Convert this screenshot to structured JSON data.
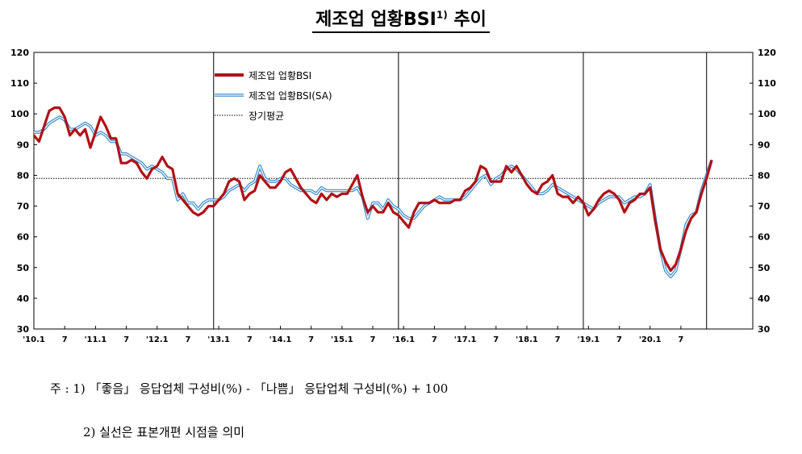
{
  "title": {
    "text": "제조업 업황BSI",
    "superscript": "1)",
    "suffix": " 추이"
  },
  "notes": {
    "line1": "주 : 1) 「좋음」 응답업체 구성비(%) - 「나쁨」 응답업체 구성비(%) + 100",
    "line2": "2) 실선은 표본개편 시점을 의미"
  },
  "chart_data": {
    "type": "line",
    "ylim": [
      30,
      120
    ],
    "yticks": [
      30,
      40,
      50,
      60,
      70,
      80,
      90,
      100,
      110,
      120
    ],
    "xlim": [
      "2010-01",
      "2021-09"
    ],
    "x_tick_labels": [
      {
        "date": "2010-01",
        "label": "'10.1"
      },
      {
        "date": "2010-07",
        "label": "7"
      },
      {
        "date": "2011-01",
        "label": "'11.1"
      },
      {
        "date": "2011-07",
        "label": "7"
      },
      {
        "date": "2012-01",
        "label": "'12.1"
      },
      {
        "date": "2012-07",
        "label": "7"
      },
      {
        "date": "2013-01",
        "label": "'13.1"
      },
      {
        "date": "2013-07",
        "label": "7"
      },
      {
        "date": "2014-01",
        "label": "'14.1"
      },
      {
        "date": "2014-07",
        "label": "7"
      },
      {
        "date": "2015-01",
        "label": "'15.1"
      },
      {
        "date": "2015-07",
        "label": "7"
      },
      {
        "date": "2016-01",
        "label": "'16.1"
      },
      {
        "date": "2016-07",
        "label": "7"
      },
      {
        "date": "2017-01",
        "label": "'17.1"
      },
      {
        "date": "2017-07",
        "label": "7"
      },
      {
        "date": "2018-01",
        "label": "'18.1"
      },
      {
        "date": "2018-07",
        "label": "7"
      },
      {
        "date": "2019-01",
        "label": "'19.1"
      },
      {
        "date": "2019-07",
        "label": "7"
      },
      {
        "date": "2020-01",
        "label": "'20.1"
      },
      {
        "date": "2020-07",
        "label": "7"
      }
    ],
    "sample_revision_lines": [
      "2012-12",
      "2015-12",
      "2018-12",
      "2020-12"
    ],
    "long_term_average": 79,
    "legend_position": "top-left",
    "series": [
      {
        "name": "제조업 업황BSI",
        "color": "#b01116",
        "style": "solid",
        "points": [
          [
            "2010-01",
            93
          ],
          [
            "2010-02",
            91
          ],
          [
            "2010-03",
            96
          ],
          [
            "2010-04",
            101
          ],
          [
            "2010-05",
            102
          ],
          [
            "2010-06",
            102
          ],
          [
            "2010-07",
            99
          ],
          [
            "2010-08",
            93
          ],
          [
            "2010-09",
            95
          ],
          [
            "2010-10",
            93
          ],
          [
            "2010-11",
            95
          ],
          [
            "2010-12",
            89
          ],
          [
            "2011-01",
            94
          ],
          [
            "2011-02",
            99
          ],
          [
            "2011-03",
            96
          ],
          [
            "2011-04",
            92
          ],
          [
            "2011-05",
            92
          ],
          [
            "2011-06",
            84
          ],
          [
            "2011-07",
            84
          ],
          [
            "2011-08",
            85
          ],
          [
            "2011-09",
            84
          ],
          [
            "2011-10",
            81
          ],
          [
            "2011-11",
            79
          ],
          [
            "2011-12",
            82
          ],
          [
            "2012-01",
            83
          ],
          [
            "2012-02",
            86
          ],
          [
            "2012-03",
            83
          ],
          [
            "2012-04",
            82
          ],
          [
            "2012-05",
            74
          ],
          [
            "2012-06",
            72
          ],
          [
            "2012-07",
            70
          ],
          [
            "2012-08",
            68
          ],
          [
            "2012-09",
            67
          ],
          [
            "2012-10",
            68
          ],
          [
            "2012-11",
            70
          ],
          [
            "2012-12",
            70
          ],
          [
            "2013-01",
            72
          ],
          [
            "2013-02",
            74
          ],
          [
            "2013-03",
            78
          ],
          [
            "2013-04",
            79
          ],
          [
            "2013-05",
            78
          ],
          [
            "2013-06",
            72
          ],
          [
            "2013-07",
            74
          ],
          [
            "2013-08",
            75
          ],
          [
            "2013-09",
            80
          ],
          [
            "2013-10",
            78
          ],
          [
            "2013-11",
            76
          ],
          [
            "2013-12",
            76
          ],
          [
            "2014-01",
            78
          ],
          [
            "2014-02",
            81
          ],
          [
            "2014-03",
            82
          ],
          [
            "2014-04",
            79
          ],
          [
            "2014-05",
            76
          ],
          [
            "2014-06",
            74
          ],
          [
            "2014-07",
            72
          ],
          [
            "2014-08",
            71
          ],
          [
            "2014-09",
            74
          ],
          [
            "2014-10",
            72
          ],
          [
            "2014-11",
            74
          ],
          [
            "2014-12",
            73
          ],
          [
            "2015-01",
            74
          ],
          [
            "2015-02",
            74
          ],
          [
            "2015-03",
            77
          ],
          [
            "2015-04",
            80
          ],
          [
            "2015-05",
            73
          ],
          [
            "2015-06",
            68
          ],
          [
            "2015-07",
            70
          ],
          [
            "2015-08",
            68
          ],
          [
            "2015-09",
            68
          ],
          [
            "2015-10",
            71
          ],
          [
            "2015-11",
            68
          ],
          [
            "2015-12",
            67
          ],
          [
            "2016-01",
            65
          ],
          [
            "2016-02",
            63
          ],
          [
            "2016-03",
            68
          ],
          [
            "2016-04",
            71
          ],
          [
            "2016-05",
            71
          ],
          [
            "2016-06",
            71
          ],
          [
            "2016-07",
            72
          ],
          [
            "2016-08",
            71
          ],
          [
            "2016-09",
            71
          ],
          [
            "2016-10",
            71
          ],
          [
            "2016-11",
            72
          ],
          [
            "2016-12",
            72
          ],
          [
            "2017-01",
            75
          ],
          [
            "2017-02",
            76
          ],
          [
            "2017-03",
            78
          ],
          [
            "2017-04",
            83
          ],
          [
            "2017-05",
            82
          ],
          [
            "2017-06",
            78
          ],
          [
            "2017-07",
            78
          ],
          [
            "2017-08",
            78
          ],
          [
            "2017-09",
            83
          ],
          [
            "2017-10",
            81
          ],
          [
            "2017-11",
            83
          ],
          [
            "2017-12",
            80
          ],
          [
            "2018-01",
            77
          ],
          [
            "2018-02",
            75
          ],
          [
            "2018-03",
            74
          ],
          [
            "2018-04",
            77
          ],
          [
            "2018-05",
            78
          ],
          [
            "2018-06",
            80
          ],
          [
            "2018-07",
            74
          ],
          [
            "2018-08",
            73
          ],
          [
            "2018-09",
            73
          ],
          [
            "2018-10",
            71
          ],
          [
            "2018-11",
            73
          ],
          [
            "2018-12",
            71
          ],
          [
            "2019-01",
            67
          ],
          [
            "2019-02",
            69
          ],
          [
            "2019-03",
            72
          ],
          [
            "2019-04",
            74
          ],
          [
            "2019-05",
            75
          ],
          [
            "2019-06",
            74
          ],
          [
            "2019-07",
            72
          ],
          [
            "2019-08",
            68
          ],
          [
            "2019-09",
            71
          ],
          [
            "2019-10",
            72
          ],
          [
            "2019-11",
            74
          ],
          [
            "2019-12",
            74
          ],
          [
            "2020-01",
            76
          ],
          [
            "2020-02",
            65
          ],
          [
            "2020-03",
            56
          ],
          [
            "2020-04",
            52
          ],
          [
            "2020-05",
            49
          ],
          [
            "2020-06",
            51
          ],
          [
            "2020-07",
            56
          ],
          [
            "2020-08",
            62
          ],
          [
            "2020-09",
            66
          ],
          [
            "2020-10",
            68
          ],
          [
            "2020-11",
            74
          ],
          [
            "2020-12",
            79
          ],
          [
            "2021-01",
            85
          ]
        ]
      },
      {
        "name": "제조업 업황BSI(SA)",
        "color": "#2f86c9",
        "style": "double",
        "points": [
          [
            "2010-01",
            94
          ],
          [
            "2010-02",
            94
          ],
          [
            "2010-03",
            95
          ],
          [
            "2010-04",
            97
          ],
          [
            "2010-05",
            98
          ],
          [
            "2010-06",
            99
          ],
          [
            "2010-07",
            98
          ],
          [
            "2010-08",
            95
          ],
          [
            "2010-09",
            95
          ],
          [
            "2010-10",
            96
          ],
          [
            "2010-11",
            97
          ],
          [
            "2010-12",
            96
          ],
          [
            "2011-01",
            93
          ],
          [
            "2011-02",
            94
          ],
          [
            "2011-03",
            93
          ],
          [
            "2011-04",
            91
          ],
          [
            "2011-05",
            91
          ],
          [
            "2011-06",
            87
          ],
          [
            "2011-07",
            87
          ],
          [
            "2011-08",
            86
          ],
          [
            "2011-09",
            85
          ],
          [
            "2011-10",
            84
          ],
          [
            "2011-11",
            82
          ],
          [
            "2011-12",
            83
          ],
          [
            "2012-01",
            82
          ],
          [
            "2012-02",
            81
          ],
          [
            "2012-03",
            79
          ],
          [
            "2012-04",
            79
          ],
          [
            "2012-05",
            72
          ],
          [
            "2012-06",
            74
          ],
          [
            "2012-07",
            71
          ],
          [
            "2012-08",
            71
          ],
          [
            "2012-09",
            69
          ],
          [
            "2012-10",
            71
          ],
          [
            "2012-11",
            72
          ],
          [
            "2012-12",
            72
          ],
          [
            "2013-01",
            72
          ],
          [
            "2013-02",
            73
          ],
          [
            "2013-03",
            75
          ],
          [
            "2013-04",
            76
          ],
          [
            "2013-05",
            77
          ],
          [
            "2013-06",
            75
          ],
          [
            "2013-07",
            77
          ],
          [
            "2013-08",
            78
          ],
          [
            "2013-09",
            83
          ],
          [
            "2013-10",
            79
          ],
          [
            "2013-11",
            78
          ],
          [
            "2013-12",
            78
          ],
          [
            "2014-01",
            79
          ],
          [
            "2014-02",
            79
          ],
          [
            "2014-03",
            77
          ],
          [
            "2014-04",
            76
          ],
          [
            "2014-05",
            75
          ],
          [
            "2014-06",
            75
          ],
          [
            "2014-07",
            75
          ],
          [
            "2014-08",
            74
          ],
          [
            "2014-09",
            76
          ],
          [
            "2014-10",
            75
          ],
          [
            "2014-11",
            75
          ],
          [
            "2014-12",
            75
          ],
          [
            "2015-01",
            75
          ],
          [
            "2015-02",
            75
          ],
          [
            "2015-03",
            75
          ],
          [
            "2015-04",
            76
          ],
          [
            "2015-05",
            73
          ],
          [
            "2015-06",
            66
          ],
          [
            "2015-07",
            71
          ],
          [
            "2015-08",
            71
          ],
          [
            "2015-09",
            69
          ],
          [
            "2015-10",
            72
          ],
          [
            "2015-11",
            70
          ],
          [
            "2015-12",
            69
          ],
          [
            "2016-01",
            67
          ],
          [
            "2016-02",
            66
          ],
          [
            "2016-03",
            66
          ],
          [
            "2016-04",
            68
          ],
          [
            "2016-05",
            70
          ],
          [
            "2016-06",
            71
          ],
          [
            "2016-07",
            72
          ],
          [
            "2016-08",
            73
          ],
          [
            "2016-09",
            72
          ],
          [
            "2016-10",
            72
          ],
          [
            "2016-11",
            72
          ],
          [
            "2016-12",
            72
          ],
          [
            "2017-01",
            73
          ],
          [
            "2017-02",
            75
          ],
          [
            "2017-03",
            77
          ],
          [
            "2017-04",
            79
          ],
          [
            "2017-05",
            80
          ],
          [
            "2017-06",
            77
          ],
          [
            "2017-07",
            79
          ],
          [
            "2017-08",
            80
          ],
          [
            "2017-09",
            82
          ],
          [
            "2017-10",
            83
          ],
          [
            "2017-11",
            82
          ],
          [
            "2017-12",
            80
          ],
          [
            "2018-01",
            78
          ],
          [
            "2018-02",
            76
          ],
          [
            "2018-03",
            74
          ],
          [
            "2018-04",
            74
          ],
          [
            "2018-05",
            75
          ],
          [
            "2018-06",
            77
          ],
          [
            "2018-07",
            76
          ],
          [
            "2018-08",
            75
          ],
          [
            "2018-09",
            74
          ],
          [
            "2018-10",
            73
          ],
          [
            "2018-11",
            72
          ],
          [
            "2018-12",
            71
          ],
          [
            "2019-01",
            70
          ],
          [
            "2019-02",
            69
          ],
          [
            "2019-03",
            71
          ],
          [
            "2019-04",
            72
          ],
          [
            "2019-05",
            73
          ],
          [
            "2019-06",
            73
          ],
          [
            "2019-07",
            73
          ],
          [
            "2019-08",
            71
          ],
          [
            "2019-09",
            72
          ],
          [
            "2019-10",
            73
          ],
          [
            "2019-11",
            73
          ],
          [
            "2019-12",
            74
          ],
          [
            "2020-01",
            77
          ],
          [
            "2020-02",
            66
          ],
          [
            "2020-03",
            56
          ],
          [
            "2020-04",
            49
          ],
          [
            "2020-05",
            47
          ],
          [
            "2020-06",
            49
          ],
          [
            "2020-07",
            56
          ],
          [
            "2020-08",
            64
          ],
          [
            "2020-09",
            67
          ],
          [
            "2020-10",
            68
          ],
          [
            "2020-11",
            75
          ],
          [
            "2020-12",
            80
          ],
          [
            "2021-01",
            85
          ]
        ]
      },
      {
        "name": "장기평균",
        "color": "#000000",
        "style": "dotted",
        "value": 79
      }
    ]
  }
}
